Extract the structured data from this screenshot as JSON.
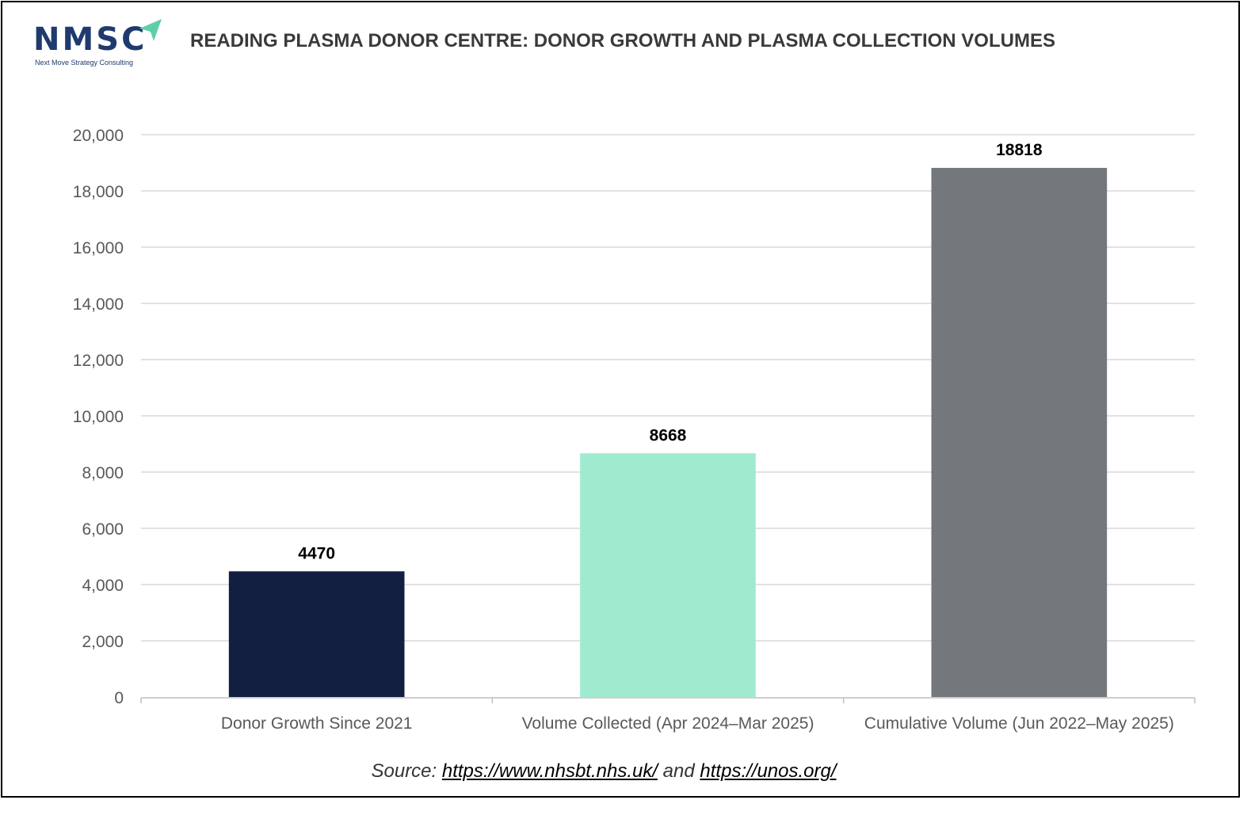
{
  "logo": {
    "text": "NMSC",
    "subtitle": "Next Move Strategy Consulting",
    "color": "#1f3a6e",
    "accent": "#5fcfa8"
  },
  "source": {
    "prefix": "Source: ",
    "link1": "https://www.nhsbt.nhs.uk/",
    "joiner": " and ",
    "link2": "https://unos.org/"
  },
  "chart_data": {
    "type": "bar",
    "title": "READING PLASMA DONOR CENTRE: DONOR GROWTH AND PLASMA COLLECTION VOLUMES",
    "categories": [
      "Donor Growth Since 2021",
      "Volume Collected (Apr 2024–Mar 2025)",
      "Cumulative Volume (Jun 2022–May 2025)"
    ],
    "values": [
      4470,
      8668,
      18818
    ],
    "data_labels": [
      "4470",
      "8668",
      "18818"
    ],
    "colors": [
      "#121f41",
      "#a0ebcf",
      "#74777c"
    ],
    "ylim": [
      0,
      20000
    ],
    "yticks": [
      0,
      2000,
      4000,
      6000,
      8000,
      10000,
      12000,
      14000,
      16000,
      18000,
      20000
    ],
    "ytick_labels": [
      "0",
      "2,000",
      "4,000",
      "6,000",
      "8,000",
      "10,000",
      "12,000",
      "14,000",
      "16,000",
      "18,000",
      "20,000"
    ],
    "xlabel": "",
    "ylabel": "",
    "grid": true,
    "legend": "none"
  }
}
